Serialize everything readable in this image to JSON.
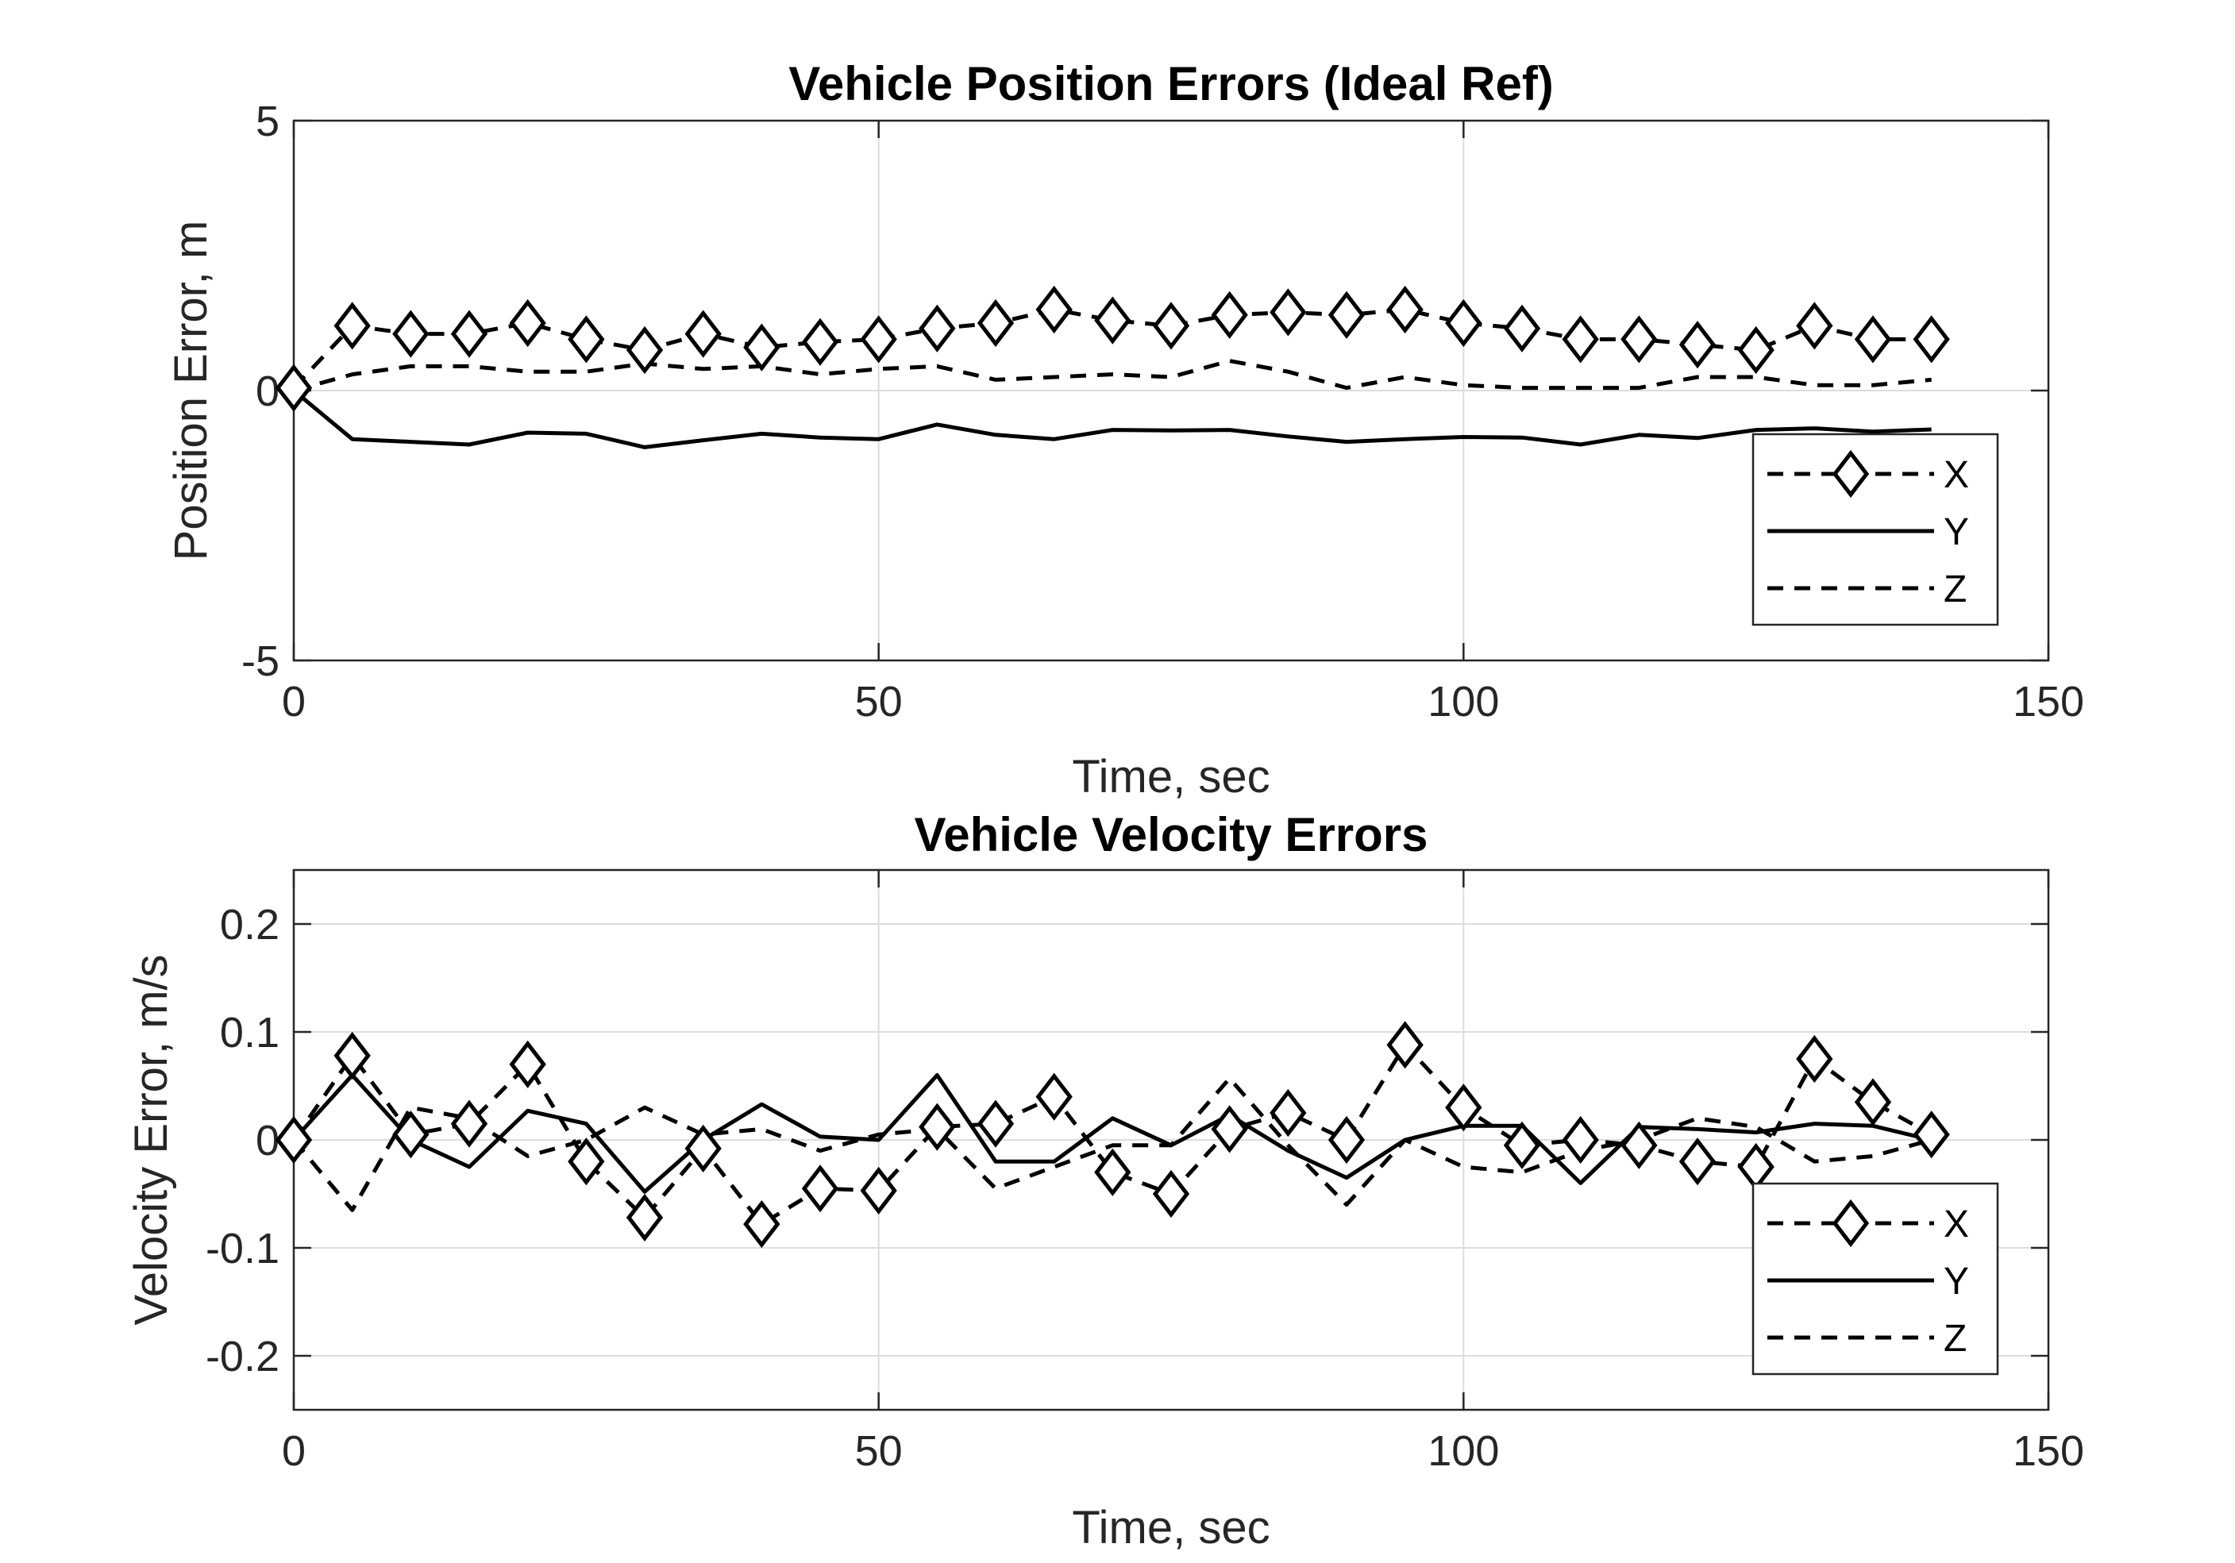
{
  "chart_data": [
    {
      "type": "line",
      "title": "Vehicle Position Errors (Ideal Ref)",
      "xlabel": "Time, sec",
      "ylabel": "Position Error, m",
      "xlim": [
        0,
        150
      ],
      "ylim": [
        -5,
        5
      ],
      "xticks": [
        0,
        50,
        100,
        150
      ],
      "yticks": [
        -5,
        0,
        5
      ],
      "xtick_labels": [
        "0",
        "50",
        "100",
        "150"
      ],
      "ytick_labels": [
        "-5",
        "0",
        "5"
      ],
      "grid": true,
      "legend_position": "bottom-right",
      "x": [
        0,
        5,
        10,
        15,
        20,
        25,
        30,
        35,
        40,
        45,
        50,
        55,
        60,
        65,
        70,
        75,
        80,
        85,
        90,
        95,
        100,
        105,
        110,
        115,
        120,
        125,
        130,
        135,
        140
      ],
      "series": [
        {
          "name": "X",
          "style": "dashed-diamond",
          "values": [
            0.05,
            1.2,
            1.05,
            1.05,
            1.25,
            0.95,
            0.75,
            1.05,
            0.8,
            0.9,
            0.95,
            1.15,
            1.25,
            1.5,
            1.3,
            1.2,
            1.4,
            1.45,
            1.4,
            1.5,
            1.25,
            1.15,
            0.95,
            0.95,
            0.85,
            0.75,
            1.2,
            0.95,
            0.95
          ]
        },
        {
          "name": "Y",
          "style": "solid",
          "values": [
            0.0,
            -0.9,
            -0.95,
            -1.0,
            -0.78,
            -0.8,
            -1.05,
            -0.92,
            -0.8,
            -0.87,
            -0.9,
            -0.63,
            -0.82,
            -0.9,
            -0.73,
            -0.74,
            -0.73,
            -0.85,
            -0.95,
            -0.9,
            -0.86,
            -0.87,
            -1.0,
            -0.82,
            -0.88,
            -0.73,
            -0.7,
            -0.76,
            -0.72
          ]
        },
        {
          "name": "Z",
          "style": "dashed",
          "values": [
            0.0,
            0.3,
            0.45,
            0.45,
            0.35,
            0.35,
            0.5,
            0.4,
            0.45,
            0.3,
            0.4,
            0.45,
            0.2,
            0.25,
            0.3,
            0.25,
            0.55,
            0.35,
            0.05,
            0.25,
            0.1,
            0.05,
            0.05,
            0.05,
            0.25,
            0.25,
            0.1,
            0.1,
            0.2
          ]
        }
      ]
    },
    {
      "type": "line",
      "title": "Vehicle Velocity Errors",
      "xlabel": "Time, sec",
      "ylabel": "Velocity Error, m/s",
      "xlim": [
        0,
        150
      ],
      "ylim": [
        -0.25,
        0.25
      ],
      "xticks": [
        0,
        50,
        100,
        150
      ],
      "yticks": [
        -0.2,
        -0.1,
        0,
        0.1,
        0.2
      ],
      "xtick_labels": [
        "0",
        "50",
        "100",
        "150"
      ],
      "ytick_labels": [
        "-0.2",
        "-0.1",
        "0",
        "0.1",
        "0.2"
      ],
      "grid": true,
      "legend_position": "bottom-right",
      "x": [
        0,
        5,
        10,
        15,
        20,
        25,
        30,
        35,
        40,
        45,
        50,
        55,
        60,
        65,
        70,
        75,
        80,
        85,
        90,
        95,
        100,
        105,
        110,
        115,
        120,
        125,
        130,
        135,
        140
      ],
      "series": [
        {
          "name": "X",
          "style": "dashed-diamond",
          "values": [
            0.0,
            0.078,
            0.005,
            0.015,
            0.07,
            -0.02,
            -0.072,
            -0.008,
            -0.078,
            -0.045,
            -0.047,
            0.012,
            0.015,
            0.04,
            -0.03,
            -0.05,
            0.01,
            0.025,
            0.0,
            0.088,
            0.03,
            -0.005,
            0.0,
            -0.005,
            -0.02,
            -0.025,
            0.075,
            0.035,
            0.005
          ]
        },
        {
          "name": "Y",
          "style": "solid",
          "values": [
            0.0,
            0.06,
            0.0,
            -0.025,
            0.027,
            0.015,
            -0.048,
            0.0,
            0.033,
            0.003,
            0.0,
            0.06,
            -0.02,
            -0.02,
            0.02,
            -0.005,
            0.023,
            -0.01,
            -0.035,
            0.0,
            0.013,
            0.013,
            -0.04,
            0.012,
            0.01,
            0.007,
            0.015,
            0.013,
            0.0
          ]
        },
        {
          "name": "Z",
          "style": "dashed",
          "values": [
            0.0,
            -0.065,
            0.03,
            0.02,
            -0.015,
            0.0,
            0.03,
            0.005,
            0.01,
            -0.01,
            0.005,
            0.01,
            -0.045,
            -0.025,
            -0.005,
            -0.005,
            0.057,
            -0.005,
            -0.06,
            0.0,
            -0.025,
            -0.03,
            -0.01,
            0.0,
            0.02,
            0.012,
            -0.02,
            -0.015,
            0.0
          ]
        }
      ]
    }
  ]
}
